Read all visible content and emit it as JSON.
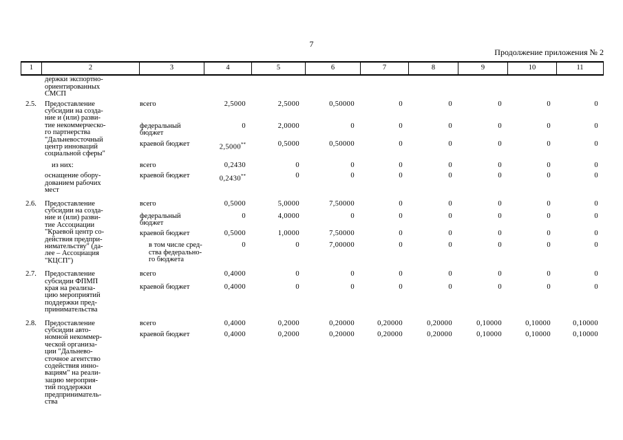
{
  "page": {
    "number": "7",
    "continuation": "Продолжение приложения № 2"
  },
  "table": {
    "header_cols": [
      "1",
      "2",
      "3",
      "4",
      "5",
      "6",
      "7",
      "8",
      "9",
      "10",
      "11"
    ],
    "carryover": "держки экспортно-\nориентированных\nСМСП",
    "items": [
      {
        "num": "2.5.",
        "groups": [
          {
            "gap": 4,
            "col2": "Предоставление\nсубсидии на созда-\nние и (или) разви-\nтие некоммерческо-\nго партнерства\n\"Дальневосточный\nцентр инноваций\nсоциальной сферы\"",
            "col2_indent": false,
            "subrows": [
              {
                "gap": 0,
                "label": "всего",
                "label_indent": false,
                "values": [
                  "2,5000",
                  "2,5000",
                  "0,50000",
                  "0",
                  "0",
                  "0",
                  "0",
                  "0"
                ]
              },
              {
                "gap": 22,
                "label": "федеральный\nбюджет",
                "label_indent": false,
                "values": [
                  "0",
                  "2,0000",
                  "0",
                  "0",
                  "0",
                  "0",
                  "0",
                  "0"
                ]
              },
              {
                "gap": 5,
                "label": "краевой бюджет",
                "label_indent": false,
                "values": [
                  "2,5000**",
                  "0,5000",
                  "0,50000",
                  "0",
                  "0",
                  "0",
                  "0",
                  "0"
                ]
              }
            ]
          },
          {
            "gap": 6,
            "col2": "из них:",
            "col2_indent": true,
            "subrows": [
              {
                "gap": 0,
                "label": "всего",
                "label_indent": false,
                "values": [
                  "0,2430",
                  "0",
                  "0",
                  "0",
                  "0",
                  "0",
                  "0",
                  "0"
                ]
              }
            ]
          },
          {
            "gap": 5,
            "col2": "оснащение обору-\nдованием рабочих\nмест",
            "col2_indent": false,
            "subrows": [
              {
                "gap": 0,
                "label": "краевой бюджет",
                "label_indent": false,
                "values": [
                  "0,2430**",
                  "0",
                  "0",
                  "0",
                  "0",
                  "0",
                  "0",
                  "0"
                ]
              }
            ]
          }
        ]
      },
      {
        "num": "2.6.",
        "groups": [
          {
            "gap": 9,
            "col2": "Предоставление\nсубсидии на созда-\nние и (или) разви-\nтие Ассоциации\n\"Краевой центр со-\nдействия предпри-\nнимательству\" (да-\nлее – Ассоциация\n\"КЦСП\")",
            "col2_indent": false,
            "subrows": [
              {
                "gap": 0,
                "label": "всего",
                "label_indent": false,
                "values": [
                  "0,5000",
                  "5,0000",
                  "7,50000",
                  "0",
                  "0",
                  "0",
                  "0",
                  "0"
                ]
              },
              {
                "gap": 8,
                "label": "федеральный\nбюджет",
                "label_indent": false,
                "values": [
                  "0",
                  "4,0000",
                  "0",
                  "0",
                  "0",
                  "0",
                  "0",
                  "0"
                ]
              },
              {
                "gap": 4,
                "label": "краевой бюджет",
                "label_indent": false,
                "values": [
                  "0,5000",
                  "1,0000",
                  "7,50000",
                  "0",
                  "0",
                  "0",
                  "0",
                  "0"
                ]
              },
              {
                "gap": 7,
                "label": "в том числе сред-\nства федерально-\nго бюджета",
                "label_indent": true,
                "values": [
                  "0",
                  "0",
                  "7,00000",
                  "0",
                  "0",
                  "0",
                  "0",
                  "0"
                ]
              }
            ]
          }
        ]
      },
      {
        "num": "2.7.",
        "groups": [
          {
            "gap": 9,
            "col2": "Предоставление\nсубсидии ФПМП\nкрая на реализа-\nцию мероприятий\nподдержки пред-\nпринимательства",
            "col2_indent": false,
            "subrows": [
              {
                "gap": 0,
                "label": "всего",
                "label_indent": false,
                "values": [
                  "0,4000",
                  "0",
                  "0",
                  "0",
                  "0",
                  "0",
                  "0",
                  "0"
                ]
              },
              {
                "gap": 8,
                "label": "краевой бюджет",
                "label_indent": false,
                "values": [
                  "0,4000",
                  "0",
                  "0",
                  "0",
                  "0",
                  "0",
                  "0",
                  "0"
                ]
              }
            ]
          }
        ]
      },
      {
        "num": "2.8.",
        "groups": [
          {
            "gap": 9,
            "col2": "Предоставление\nсубсидии авто-\nномной некоммер-\nческой организа-\nции \"Дальнево-\nсточное агентство\nсодействия инно-\nвациям\" на реали-\nзацию мероприя-\nтий поддержки\nпредприниматель-\nства",
            "col2_indent": false,
            "subrows": [
              {
                "gap": 0,
                "label": "всего",
                "label_indent": false,
                "values": [
                  "0,4000",
                  "0,2000",
                  "0,20000",
                  "0,20000",
                  "0,20000",
                  "0,10000",
                  "0,10000",
                  "0,10000"
                ]
              },
              {
                "gap": 6,
                "label": "краевой бюджет",
                "label_indent": false,
                "values": [
                  "0,4000",
                  "0,2000",
                  "0,20000",
                  "0,20000",
                  "0,20000",
                  "0,10000",
                  "0,10000",
                  "0,10000"
                ]
              }
            ]
          }
        ]
      }
    ]
  }
}
